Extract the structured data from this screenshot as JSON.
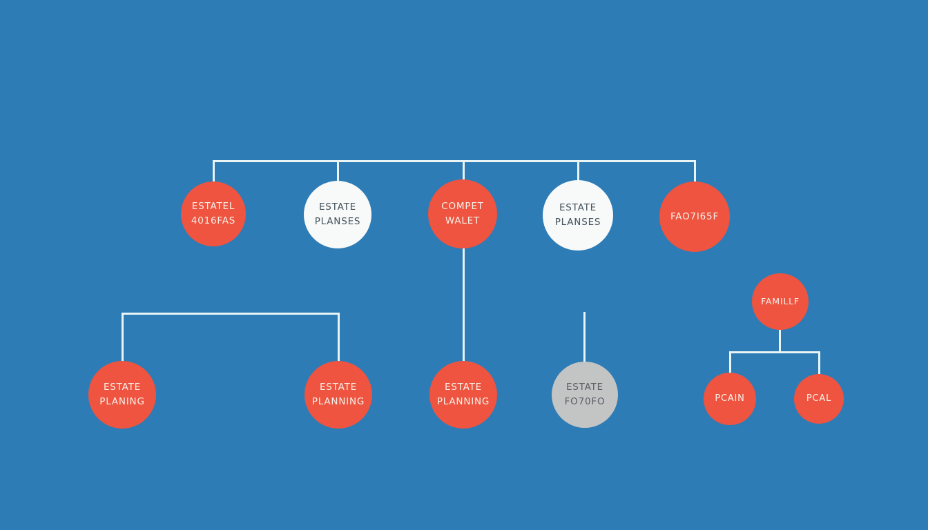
{
  "colors": {
    "background": "#2e7cb5",
    "node-red": "#ee5440",
    "node-white": "#f8f9f9",
    "node-gray": "#c3c4c4",
    "line": "#e8f4f6",
    "text-on-red": "#f7f1e9",
    "text-on-white": "#42525c",
    "text-on-gray": "#5a5e63"
  },
  "chart_title": "",
  "nodes": [
    {
      "line1": "ESTATEL",
      "line2": "4016FAS",
      "color": "red"
    },
    {
      "line1": "ESTATE",
      "line2": "PLANSES",
      "color": "white"
    },
    {
      "line1": "COMPET",
      "line2": "WALET",
      "color": "red"
    },
    {
      "line1": "ESTATE",
      "line2": "PLANSES",
      "color": "white"
    },
    {
      "line1": "FAO7i65F",
      "color": "red"
    },
    {
      "line1": "ESTATE",
      "line2": "PLANING",
      "color": "red"
    },
    {
      "line1": "ESTATE",
      "line2": "PLANNING",
      "color": "red"
    },
    {
      "line1": "ESTATE",
      "line2": "PLANNING",
      "color": "red"
    },
    {
      "line1": "ESTATE",
      "line2": "FO70FO",
      "color": "gray"
    },
    {
      "line1": "FAMILLF",
      "color": "red"
    },
    {
      "line1": "PCAIN",
      "color": "red"
    },
    {
      "line1": "PCAL",
      "color": "red"
    }
  ]
}
